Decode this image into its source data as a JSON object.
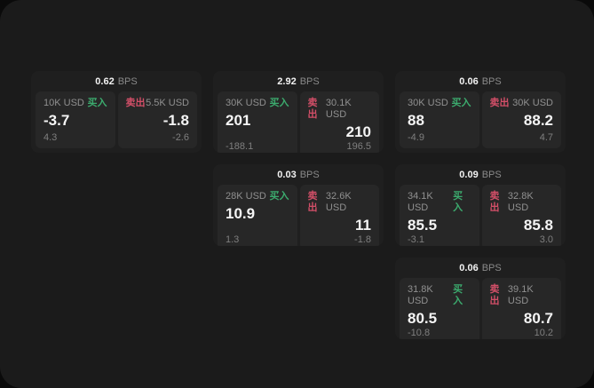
{
  "labels": {
    "bps_suffix": "BPS",
    "buy": "买入",
    "sell": "卖出"
  },
  "colors": {
    "app_background": "#1b1b1b",
    "card_background": "#1f1f1f",
    "panel_background": "#272727",
    "buy_green": "#3cab6e",
    "sell_red": "#d34f68",
    "value_white": "#f5f5f5",
    "muted_gray": "#909090"
  },
  "cards": [
    {
      "bps": "0.62",
      "grid": {
        "col": 1,
        "row": 1
      },
      "buy": {
        "amount": "10K USD",
        "value": "-3.7",
        "sub": "4.3"
      },
      "sell": {
        "amount": "5.5K USD",
        "value": "-1.8",
        "sub": "-2.6"
      }
    },
    {
      "bps": "2.92",
      "grid": {
        "col": 2,
        "row": 1
      },
      "buy": {
        "amount": "30K USD",
        "value": "201",
        "sub": "-188.1"
      },
      "sell": {
        "amount": "30.1K USD",
        "value": "210",
        "sub": "196.5"
      }
    },
    {
      "bps": "0.06",
      "grid": {
        "col": 3,
        "row": 1
      },
      "buy": {
        "amount": "30K USD",
        "value": "88",
        "sub": "-4.9"
      },
      "sell": {
        "amount": "30K USD",
        "value": "88.2",
        "sub": "4.7"
      }
    },
    {
      "bps": "0.03",
      "grid": {
        "col": 2,
        "row": 2
      },
      "buy": {
        "amount": "28K USD",
        "value": "10.9",
        "sub": "1.3"
      },
      "sell": {
        "amount": "32.6K USD",
        "value": "11",
        "sub": "-1.8"
      }
    },
    {
      "bps": "0.09",
      "grid": {
        "col": 3,
        "row": 2
      },
      "buy": {
        "amount": "34.1K USD",
        "value": "85.5",
        "sub": "-3.1"
      },
      "sell": {
        "amount": "32.8K USD",
        "value": "85.8",
        "sub": "3.0"
      }
    },
    {
      "bps": "0.06",
      "grid": {
        "col": 3,
        "row": 3
      },
      "buy": {
        "amount": "31.8K USD",
        "value": "80.5",
        "sub": "-10.8"
      },
      "sell": {
        "amount": "39.1K USD",
        "value": "80.7",
        "sub": "10.2"
      }
    }
  ]
}
